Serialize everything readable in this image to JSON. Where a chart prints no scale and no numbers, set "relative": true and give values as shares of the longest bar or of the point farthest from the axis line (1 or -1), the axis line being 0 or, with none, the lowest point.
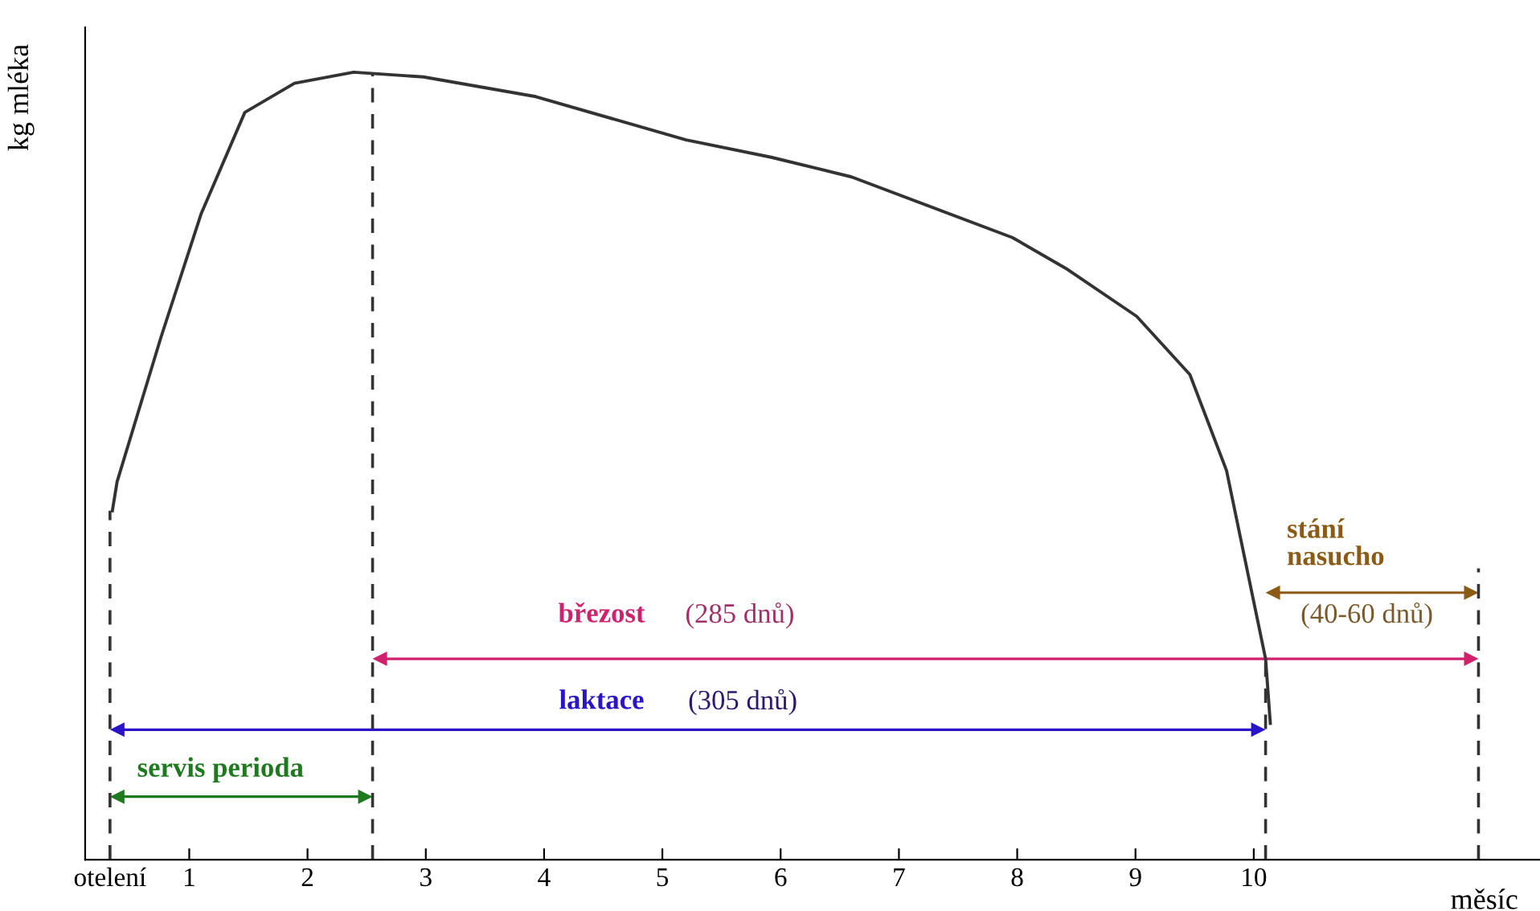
{
  "chart_data": {
    "type": "line",
    "relative": true,
    "ylabel": "kg mléka",
    "xlabel": "měsíc",
    "x": [
      0.35,
      0.39,
      0.76,
      1.1,
      1.47,
      1.89,
      2.39,
      2.98,
      3.93,
      5.2,
      5.92,
      6.6,
      7.96,
      8.41,
      9.01,
      9.46,
      9.77,
      10.1,
      10.14
    ],
    "series": [
      {
        "color": "#333333",
        "values": [
          0.443,
          0.48,
          0.663,
          0.82,
          0.949,
          0.986,
          1.0,
          0.994,
          0.969,
          0.914,
          0.892,
          0.867,
          0.79,
          0.751,
          0.69,
          0.616,
          0.494,
          0.255,
          0.173
        ]
      }
    ],
    "xlim": [
      0.12,
      12.42
    ],
    "xticks": [
      {
        "value": 0.33,
        "label": "otelení"
      },
      1,
      2,
      3,
      4,
      5,
      6,
      7,
      8,
      9,
      10
    ],
    "grid": false,
    "legend": false,
    "marker": "none",
    "line_style": "solid",
    "ref_lines": [
      {
        "axis": "x",
        "value": 0.33,
        "label": null,
        "color": "#333333",
        "line_style": "dashed"
      },
      {
        "axis": "x",
        "value": 2.55,
        "label": null,
        "color": "#333333",
        "line_style": "dashed"
      },
      {
        "axis": "x",
        "value": 10.1,
        "label": null,
        "color": "#333333",
        "line_style": "dashed"
      },
      {
        "axis": "x",
        "value": 11.9,
        "label": null,
        "color": "#333333",
        "line_style": "dashed"
      }
    ],
    "annotations": [
      "servis perioda",
      "laktace",
      "(305 dnů)",
      "březost",
      "(285 dnů)",
      "stání\nnasucho",
      "(40-60 dnů)"
    ]
  }
}
